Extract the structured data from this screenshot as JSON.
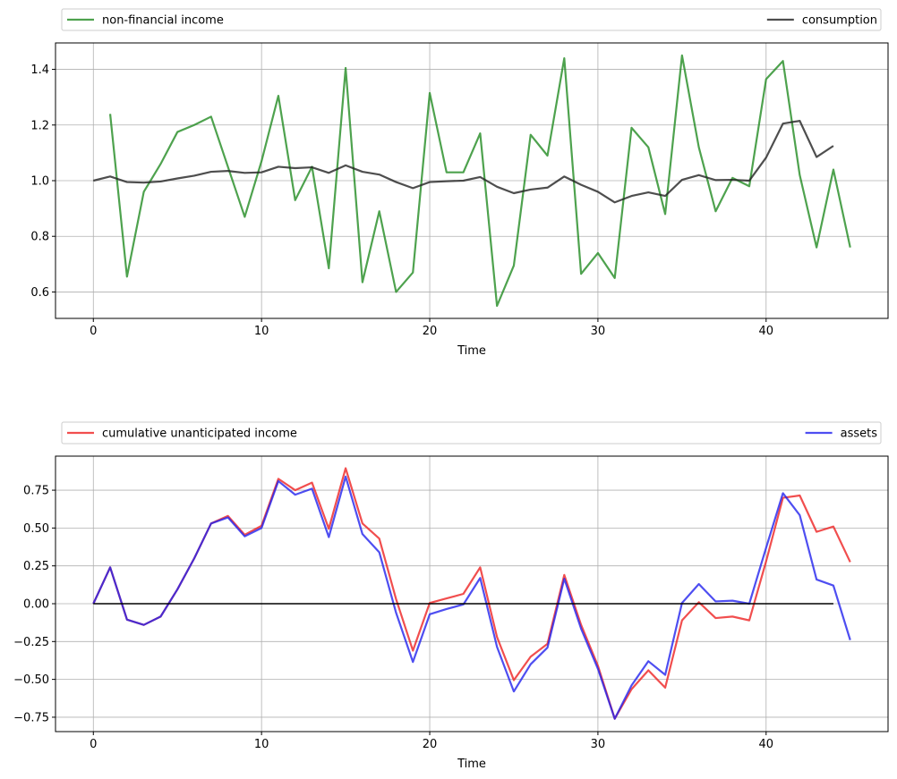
{
  "chart_data": [
    {
      "type": "line",
      "xlabel": "Time",
      "ylabel": "",
      "xlim": [
        -2.25,
        47.25
      ],
      "ylim": [
        0.505,
        1.495
      ],
      "xticks": [
        0,
        10,
        20,
        30,
        40
      ],
      "yticks": [
        0.6,
        0.8,
        1.0,
        1.2,
        1.4
      ],
      "ytick_labels": [
        "0.6",
        "0.8",
        "1.0",
        "1.2",
        "1.4"
      ],
      "grid": true,
      "legend": {
        "placement": "above",
        "entries": [
          "non-financial income",
          "consumption"
        ]
      },
      "series": [
        {
          "name": "non-financial income",
          "color": "#228b22",
          "x": [
            1,
            2,
            3,
            4,
            5,
            6,
            7,
            8,
            9,
            10,
            11,
            12,
            13,
            14,
            15,
            16,
            17,
            18,
            19,
            20,
            21,
            22,
            23,
            24,
            25,
            26,
            27,
            28,
            29,
            30,
            31,
            32,
            33,
            34,
            35,
            36,
            37,
            38,
            39,
            40,
            41,
            42,
            43,
            44,
            45
          ],
          "values": [
            1.24,
            0.655,
            0.96,
            1.06,
            1.175,
            1.2,
            1.23,
            1.05,
            0.87,
            1.07,
            1.305,
            0.93,
            1.05,
            0.685,
            1.405,
            0.635,
            0.89,
            0.6,
            0.67,
            1.315,
            1.03,
            1.03,
            1.17,
            0.55,
            0.695,
            1.165,
            1.09,
            1.44,
            0.665,
            0.74,
            0.65,
            1.19,
            1.12,
            0.88,
            1.45,
            1.12,
            0.89,
            1.01,
            0.98,
            1.365,
            1.43,
            1.02,
            0.76,
            1.04,
            0.76
          ]
        },
        {
          "name": "consumption",
          "color": "#222222",
          "x": [
            0,
            1,
            2,
            3,
            4,
            5,
            6,
            7,
            8,
            9,
            10,
            11,
            12,
            13,
            14,
            15,
            16,
            17,
            18,
            19,
            20,
            21,
            22,
            23,
            24,
            25,
            26,
            27,
            28,
            29,
            30,
            31,
            32,
            33,
            34,
            35,
            36,
            37,
            38,
            39,
            40,
            41,
            42,
            43,
            44
          ],
          "values": [
            1.0,
            1.015,
            0.995,
            0.993,
            0.997,
            1.008,
            1.018,
            1.032,
            1.035,
            1.028,
            1.03,
            1.05,
            1.045,
            1.048,
            1.028,
            1.055,
            1.032,
            1.022,
            0.995,
            0.973,
            0.995,
            0.998,
            1.0,
            1.013,
            0.978,
            0.955,
            0.968,
            0.975,
            1.015,
            0.985,
            0.96,
            0.922,
            0.945,
            0.958,
            0.945,
            1.003,
            1.02,
            1.002,
            1.003,
            1.0,
            1.083,
            1.205,
            1.215,
            1.085,
            1.125
          ]
        }
      ]
    },
    {
      "type": "line",
      "xlabel": "Time",
      "ylabel": "",
      "xlim": [
        -2.25,
        47.25
      ],
      "ylim": [
        -0.845,
        0.975
      ],
      "xticks": [
        0,
        10,
        20,
        30,
        40
      ],
      "yticks": [
        -0.75,
        -0.5,
        -0.25,
        0.0,
        0.25,
        0.5,
        0.75
      ],
      "ytick_labels": [
        "−0.75",
        "−0.50",
        "−0.25",
        "0.00",
        "0.25",
        "0.50",
        "0.75"
      ],
      "grid": true,
      "legend": {
        "placement": "above",
        "entries": [
          "cumulative unanticipated income",
          "assets"
        ]
      },
      "series": [
        {
          "name": "cumulative unanticipated income",
          "color": "#ee2222",
          "x": [
            0,
            1,
            2,
            3,
            4,
            5,
            6,
            7,
            8,
            9,
            10,
            11,
            12,
            13,
            14,
            15,
            16,
            17,
            18,
            19,
            20,
            21,
            22,
            23,
            24,
            25,
            26,
            27,
            28,
            29,
            30,
            31,
            32,
            33,
            34,
            35,
            36,
            37,
            38,
            39,
            40,
            41,
            42,
            43,
            44,
            45
          ],
          "values": [
            0.0,
            0.24,
            -0.105,
            -0.14,
            -0.085,
            0.095,
            0.3,
            0.53,
            0.58,
            0.455,
            0.515,
            0.825,
            0.75,
            0.8,
            0.495,
            0.895,
            0.53,
            0.43,
            0.03,
            -0.31,
            0.005,
            0.035,
            0.065,
            0.24,
            -0.22,
            -0.505,
            -0.35,
            -0.265,
            0.19,
            -0.14,
            -0.41,
            -0.76,
            -0.565,
            -0.44,
            -0.555,
            -0.11,
            0.01,
            -0.095,
            -0.085,
            -0.11,
            0.28,
            0.7,
            0.715,
            0.475,
            0.51,
            0.275
          ]
        },
        {
          "name": "assets",
          "color": "#2222ee",
          "x": [
            0,
            1,
            2,
            3,
            4,
            5,
            6,
            7,
            8,
            9,
            10,
            11,
            12,
            13,
            14,
            15,
            16,
            17,
            18,
            19,
            20,
            21,
            22,
            23,
            24,
            25,
            26,
            27,
            28,
            29,
            30,
            31,
            32,
            33,
            34,
            35,
            36,
            37,
            38,
            39,
            40,
            41,
            42,
            43,
            44,
            45
          ],
          "values": [
            0.0,
            0.24,
            -0.105,
            -0.14,
            -0.085,
            0.095,
            0.3,
            0.53,
            0.57,
            0.445,
            0.5,
            0.81,
            0.72,
            0.76,
            0.44,
            0.84,
            0.46,
            0.34,
            -0.06,
            -0.385,
            -0.07,
            -0.035,
            -0.005,
            0.17,
            -0.285,
            -0.58,
            -0.4,
            -0.29,
            0.165,
            -0.165,
            -0.43,
            -0.76,
            -0.54,
            -0.38,
            -0.47,
            0.005,
            0.13,
            0.015,
            0.02,
            0.0,
            0.37,
            0.73,
            0.585,
            0.16,
            0.12,
            -0.24
          ]
        },
        {
          "name": "zero line",
          "color": "#000000",
          "x": [
            0,
            44
          ],
          "values": [
            0,
            0
          ]
        }
      ]
    }
  ]
}
